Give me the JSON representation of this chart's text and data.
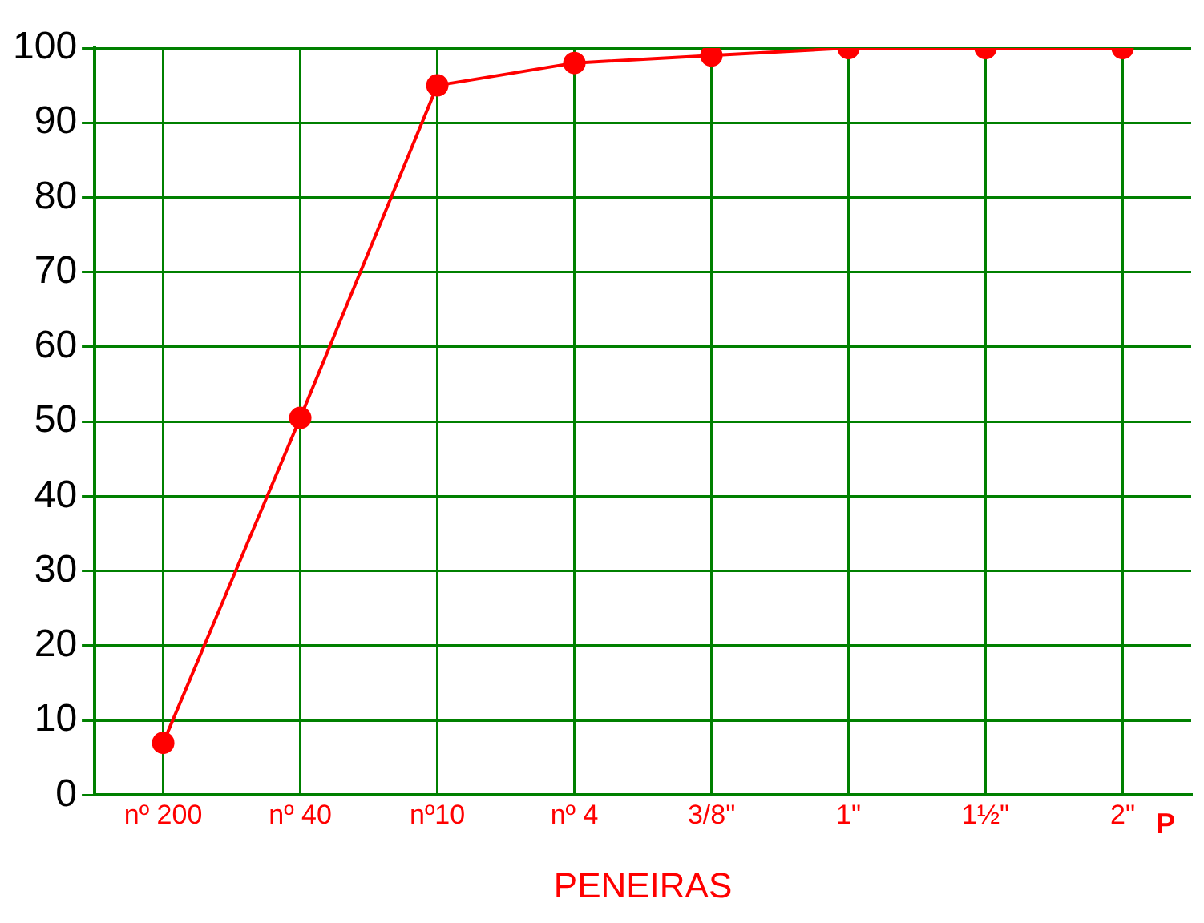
{
  "chart_data": {
    "type": "line",
    "xlabel": "PENEIRAS",
    "categories": [
      "nº 200",
      "nº 40",
      "nº10",
      "nº 4",
      "3/8\"",
      "1\"",
      "1½\"",
      "2\""
    ],
    "series": [
      {
        "color": "#ff0000",
        "values": [
          7,
          50.5,
          95,
          98,
          99,
          100,
          100,
          100
        ]
      }
    ],
    "ylim": [
      0,
      100
    ],
    "yticks": [
      0,
      10,
      20,
      30,
      40,
      50,
      60,
      70,
      80,
      90,
      100
    ],
    "grid": true,
    "legend": false,
    "marker": "circle",
    "line_style": "solid",
    "annotations": [
      "P"
    ]
  }
}
